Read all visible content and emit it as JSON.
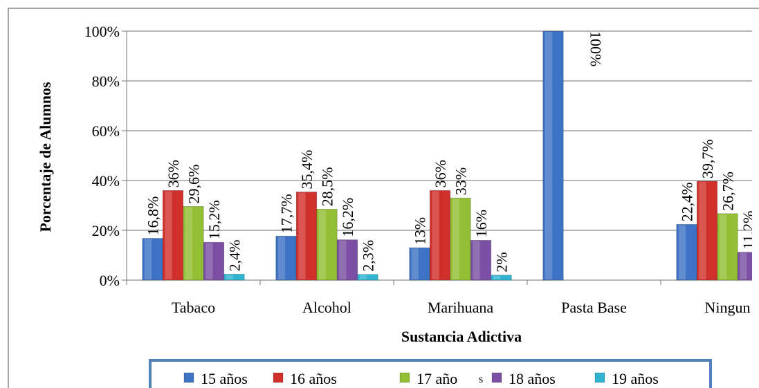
{
  "chart_data": {
    "type": "bar",
    "title": "",
    "xlabel": "Sustancia Adictiva",
    "ylabel": "Porcentaje de Alumnos",
    "ylim": [
      0,
      100
    ],
    "yticks": [
      "0%",
      "20%",
      "40%",
      "60%",
      "80%",
      "100%"
    ],
    "categories": [
      "Tabaco",
      "Alcohol",
      "Marihuana",
      "Pasta Base",
      "Ningun"
    ],
    "series": [
      {
        "name": "15 años",
        "color": "#3d72c4",
        "values": [
          16.8,
          17.7,
          13,
          100,
          22.4
        ],
        "labels": [
          "16,8%",
          "17,7%",
          "13%",
          "100%",
          "22,4%"
        ]
      },
      {
        "name": "16 años",
        "color": "#d0302b",
        "values": [
          36,
          35.4,
          36,
          null,
          39.7
        ],
        "labels": [
          "36%",
          "35,4%",
          "36%",
          "",
          "39,7%"
        ]
      },
      {
        "name": "17 año",
        "color": "#92bf34",
        "values": [
          29.6,
          28.5,
          33,
          null,
          26.7
        ],
        "labels": [
          "29,6%",
          "28,5%",
          "33%",
          "",
          "26,7%"
        ]
      },
      {
        "name": "18 años",
        "color": "#7b4fa3",
        "values": [
          15.2,
          16.2,
          16,
          null,
          11.2
        ],
        "labels": [
          "15,2%",
          "16,2%",
          "16%",
          "",
          "11,2%"
        ]
      },
      {
        "name": "19 años",
        "color": "#2fb5d1",
        "values": [
          2.4,
          2.3,
          2,
          null,
          null
        ],
        "labels": [
          "2,4%",
          "2,3%",
          "2%",
          "",
          ""
        ]
      }
    ],
    "legend": {
      "position": "bottom",
      "stray_mark": "s"
    },
    "grid": true
  }
}
